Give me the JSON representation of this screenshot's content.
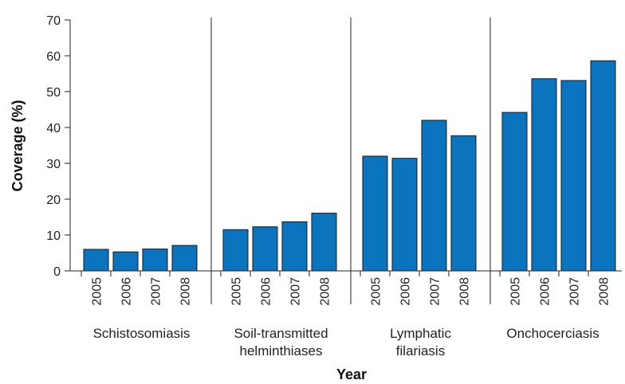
{
  "chart_data": {
    "type": "bar",
    "xlabel": "Year",
    "ylabel": "Coverage (%)",
    "ylim": [
      0,
      70
    ],
    "yticks": [
      0,
      10,
      20,
      30,
      40,
      50,
      60,
      70
    ],
    "grid": false,
    "bar_color": "#0a74be",
    "groups": [
      {
        "label_lines": [
          "Schistosomiasis"
        ],
        "categories": [
          "2005",
          "2006",
          "2007",
          "2008"
        ],
        "values": [
          6,
          5.3,
          6.1,
          7.1
        ]
      },
      {
        "label_lines": [
          "Soil-transmitted",
          "helminthiases"
        ],
        "categories": [
          "2005",
          "2006",
          "2007",
          "2008"
        ],
        "values": [
          11.5,
          12.3,
          13.7,
          16.1
        ]
      },
      {
        "label_lines": [
          "Lymphatic",
          "filariasis"
        ],
        "categories": [
          "2005",
          "2006",
          "2007",
          "2008"
        ],
        "values": [
          32,
          31.4,
          42,
          37.7
        ]
      },
      {
        "label_lines": [
          "Onchocerciasis"
        ],
        "categories": [
          "2005",
          "2006",
          "2007",
          "2008"
        ],
        "values": [
          44.2,
          53.6,
          53.1,
          58.6
        ]
      }
    ]
  }
}
